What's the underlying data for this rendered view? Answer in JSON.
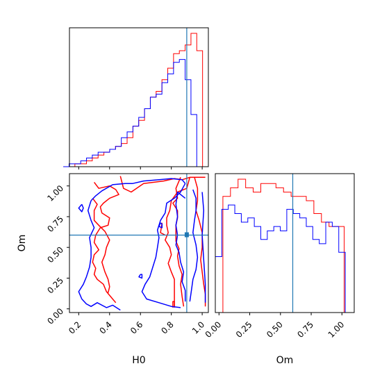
{
  "chart_data": {
    "type": "corner",
    "parameters": [
      "H0",
      "Om"
    ],
    "xlabel_h0": "H0",
    "xlabel_om": "Om",
    "ylabel_om": "Om",
    "h0_range": [
      0.14,
      1.04
    ],
    "om_range": [
      -0.03,
      1.1
    ],
    "h0_ticks": [
      "0.2",
      "0.4",
      "0.6",
      "0.8",
      "1.0"
    ],
    "om_ticks": [
      "0.00",
      "0.25",
      "0.50",
      "0.75",
      "1.00"
    ],
    "truth": {
      "H0": 0.9,
      "Om": 0.6
    },
    "colors": {
      "red": "#ff0000",
      "blue": "#0000ff",
      "truth": "#1f77b4"
    },
    "series": [
      {
        "color": "red",
        "h0_hist": [
          0,
          0,
          1,
          1,
          2,
          3,
          4,
          5,
          6,
          7,
          8,
          10,
          14,
          16,
          20,
          24,
          26,
          30,
          34,
          39,
          40,
          42,
          46,
          40,
          0
        ],
        "om_hist": [
          0,
          27,
          29,
          31,
          29,
          28,
          30,
          30,
          29,
          28,
          27,
          27,
          26,
          23,
          21,
          20,
          20,
          0
        ]
      },
      {
        "color": "blue",
        "h0_hist": [
          0,
          1,
          1,
          2,
          3,
          4,
          5,
          5,
          6,
          7,
          10,
          12,
          14,
          17,
          20,
          24,
          25,
          29,
          32,
          36,
          37,
          30,
          18,
          0,
          0
        ],
        "om_hist": [
          13,
          24,
          25,
          23,
          21,
          22,
          20,
          17,
          19,
          20,
          19,
          24,
          23,
          22,
          20,
          17,
          16,
          21,
          20,
          14,
          0
        ]
      }
    ]
  }
}
